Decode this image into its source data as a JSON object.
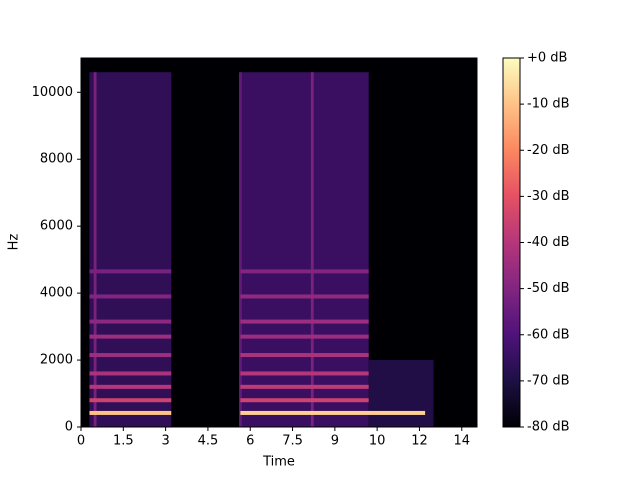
{
  "chart_data": {
    "type": "spectrogram",
    "xlabel": "Time",
    "ylabel": "Hz",
    "xlim": [
      0,
      14.04
    ],
    "ylim": [
      0,
      11025
    ],
    "xticks": [
      0,
      1.5,
      3,
      4.5,
      6,
      7.5,
      9,
      {
        "value": 10.5,
        "label": "10"
      },
      {
        "value": 12,
        "label": "12"
      },
      {
        "value": 13.5,
        "label": "14"
      }
    ],
    "yticks": [
      0,
      2000,
      4000,
      6000,
      8000,
      10000
    ],
    "clim": [
      -80,
      0
    ],
    "cticks": [
      {
        "value": 0,
        "label": "+0 dB"
      },
      {
        "value": -10,
        "label": "-10 dB"
      },
      {
        "value": -20,
        "label": "-20 dB"
      },
      {
        "value": -30,
        "label": "-30 dB"
      },
      {
        "value": -40,
        "label": "-40 dB"
      },
      {
        "value": -50,
        "label": "-50 dB"
      },
      {
        "value": -60,
        "label": "-60 dB"
      },
      {
        "value": -70,
        "label": "-70 dB"
      },
      {
        "value": -80,
        "label": "-80 dB"
      }
    ],
    "colormap": "magma",
    "regions": [
      {
        "start": 0.3,
        "end": 3.2,
        "hz_low": 0,
        "hz_high": 10600,
        "db": -65
      },
      {
        "start": 5.65,
        "end": 10.2,
        "hz_low": 0,
        "hz_high": 10600,
        "db": -63
      },
      {
        "start": 10.2,
        "end": 12.5,
        "hz_low": 0,
        "hz_high": 2000,
        "db": -68
      },
      {
        "start": 0.45,
        "end": 0.55,
        "hz_low": 0,
        "hz_high": 10600,
        "db": -50
      },
      {
        "start": 5.6,
        "end": 5.7,
        "hz_low": 0,
        "hz_high": 10600,
        "db": -55
      },
      {
        "start": 8.15,
        "end": 8.25,
        "hz_low": 0,
        "hz_high": 10600,
        "db": -50
      }
    ],
    "bands": [
      {
        "start": 0.3,
        "end": 3.2,
        "hz": 420,
        "db": -10
      },
      {
        "start": 0.3,
        "end": 3.2,
        "hz": 800,
        "db": -35
      },
      {
        "start": 0.3,
        "end": 3.2,
        "hz": 1200,
        "db": -40
      },
      {
        "start": 0.3,
        "end": 3.2,
        "hz": 1600,
        "db": -42
      },
      {
        "start": 0.3,
        "end": 3.2,
        "hz": 2150,
        "db": -45
      },
      {
        "start": 0.3,
        "end": 3.2,
        "hz": 2700,
        "db": -45
      },
      {
        "start": 0.3,
        "end": 3.2,
        "hz": 3150,
        "db": -48
      },
      {
        "start": 0.3,
        "end": 3.2,
        "hz": 3900,
        "db": -50
      },
      {
        "start": 0.3,
        "end": 3.2,
        "hz": 4650,
        "db": -52
      },
      {
        "start": 5.65,
        "end": 12.2,
        "hz": 420,
        "db": -8
      },
      {
        "start": 5.65,
        "end": 10.2,
        "hz": 800,
        "db": -35
      },
      {
        "start": 5.65,
        "end": 10.2,
        "hz": 1200,
        "db": -38
      },
      {
        "start": 5.65,
        "end": 10.2,
        "hz": 1600,
        "db": -40
      },
      {
        "start": 5.65,
        "end": 10.2,
        "hz": 2150,
        "db": -42
      },
      {
        "start": 5.65,
        "end": 10.2,
        "hz": 2700,
        "db": -45
      },
      {
        "start": 5.65,
        "end": 10.2,
        "hz": 3150,
        "db": -45
      },
      {
        "start": 5.65,
        "end": 10.2,
        "hz": 3900,
        "db": -47
      },
      {
        "start": 5.65,
        "end": 10.2,
        "hz": 4650,
        "db": -50
      }
    ]
  }
}
